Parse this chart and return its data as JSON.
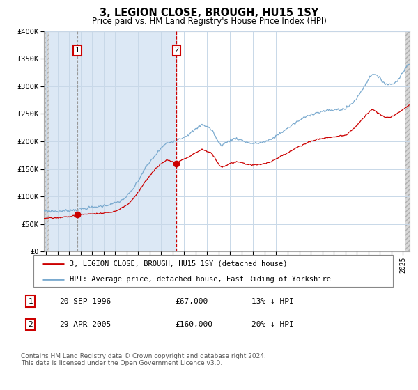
{
  "title": "3, LEGION CLOSE, BROUGH, HU15 1SY",
  "subtitle": "Price paid vs. HM Land Registry's House Price Index (HPI)",
  "background_color": "#ffffff",
  "shaded_region_color": "#dce8f5",
  "grid_color": "#c8d8e8",
  "red_line_color": "#cc0000",
  "blue_line_color": "#7aaacf",
  "purchase1_date_num": 1996.72,
  "purchase1_price": 67000,
  "purchase2_date_num": 2005.33,
  "purchase2_price": 160000,
  "ylim": [
    0,
    400000
  ],
  "xlim_start": 1993.8,
  "xlim_end": 2025.6,
  "yticks": [
    0,
    50000,
    100000,
    150000,
    200000,
    250000,
    300000,
    350000,
    400000
  ],
  "ytick_labels": [
    "£0",
    "£50K",
    "£100K",
    "£150K",
    "£200K",
    "£250K",
    "£300K",
    "£350K",
    "£400K"
  ],
  "xticks": [
    1994,
    1995,
    1996,
    1997,
    1998,
    1999,
    2000,
    2001,
    2002,
    2003,
    2004,
    2005,
    2006,
    2007,
    2008,
    2009,
    2010,
    2011,
    2012,
    2013,
    2014,
    2015,
    2016,
    2017,
    2018,
    2019,
    2020,
    2021,
    2022,
    2023,
    2024,
    2025
  ],
  "legend_line1": "3, LEGION CLOSE, BROUGH, HU15 1SY (detached house)",
  "legend_line2": "HPI: Average price, detached house, East Riding of Yorkshire",
  "footer_text": "Contains HM Land Registry data © Crown copyright and database right 2024.\nThis data is licensed under the Open Government Licence v3.0.",
  "box1_label": "1",
  "box2_label": "2",
  "row1_date": "20-SEP-1996",
  "row1_price": "£67,000",
  "row1_hpi": "13% ↓ HPI",
  "row2_date": "29-APR-2005",
  "row2_price": "£160,000",
  "row2_hpi": "20% ↓ HPI",
  "hatch_color": "#c0c0c0",
  "number_box_edge": "#cc0000"
}
